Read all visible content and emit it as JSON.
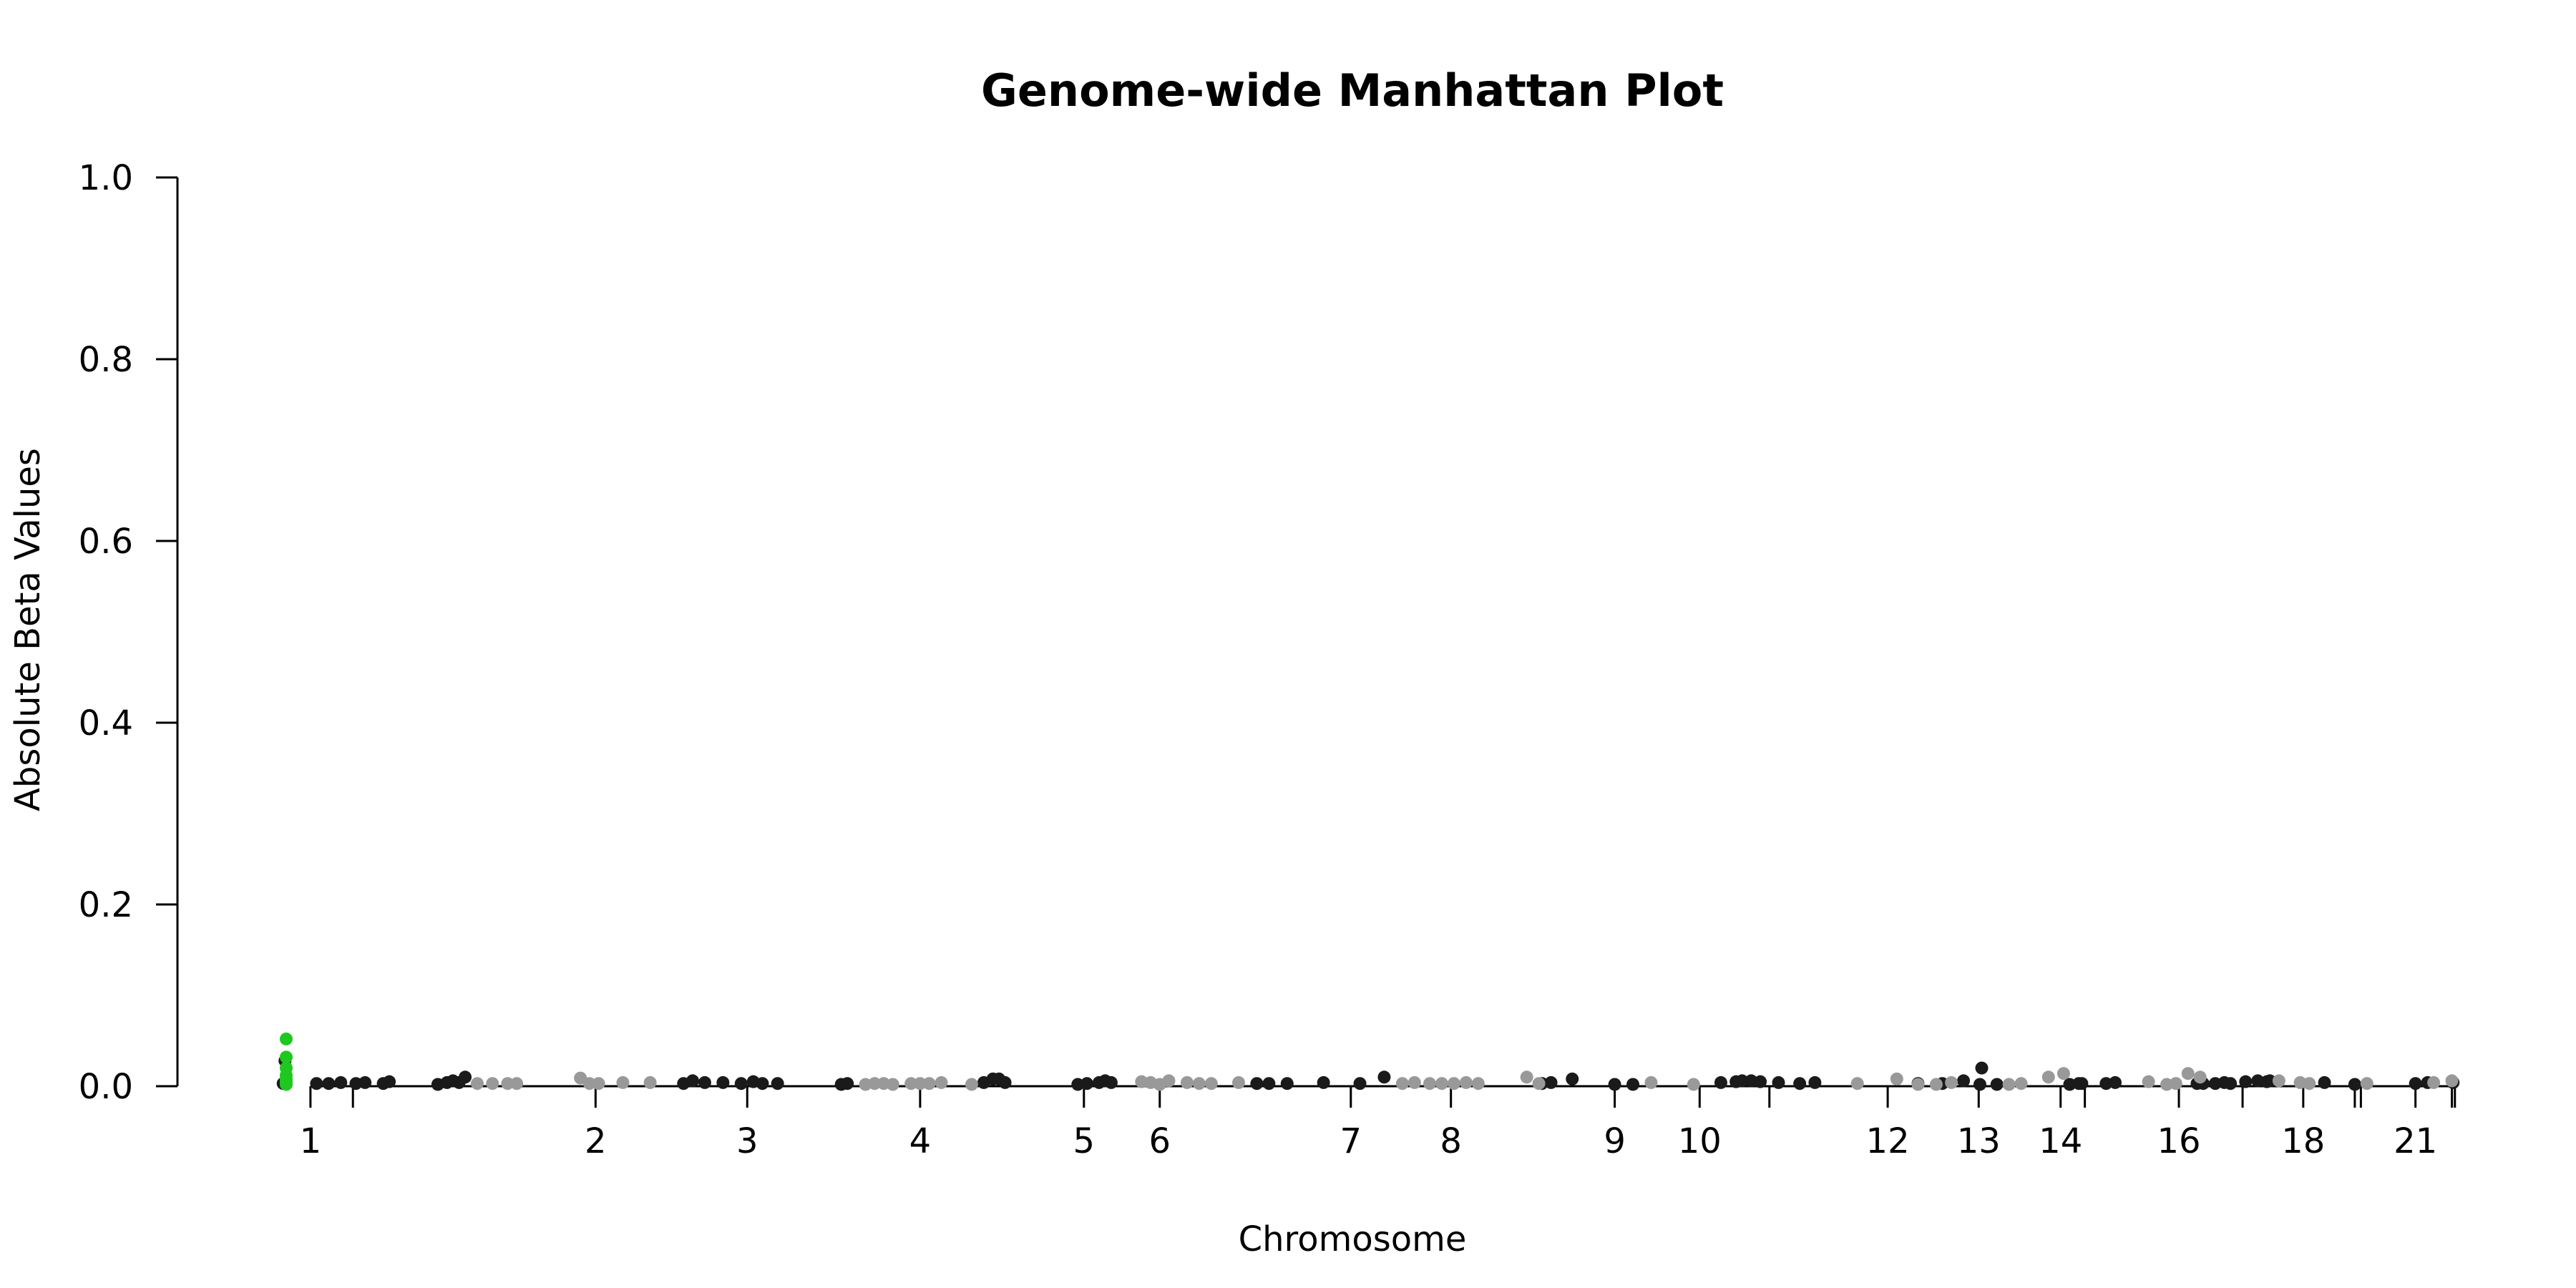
{
  "chart_data": {
    "type": "scatter",
    "title": "Genome-wide Manhattan Plot",
    "xlabel": "Chromosome",
    "ylabel": "Absolute Beta Values",
    "ylim": [
      0,
      1.0
    ],
    "y_ticks": [
      "0.0",
      "0.2",
      "0.4",
      "0.6",
      "0.8",
      "1.0"
    ],
    "x_ticks": [
      {
        "label": "1",
        "pos": 0.3
      },
      {
        "label": "",
        "pos": 1.0
      },
      {
        "label": "2",
        "pos": 5.0
      },
      {
        "label": "3",
        "pos": 7.5
      },
      {
        "label": "4",
        "pos": 10.35
      },
      {
        "label": "5",
        "pos": 13.05
      },
      {
        "label": "6",
        "pos": 14.3
      },
      {
        "label": "7",
        "pos": 17.45
      },
      {
        "label": "8",
        "pos": 19.1
      },
      {
        "label": "9",
        "pos": 21.8
      },
      {
        "label": "10",
        "pos": 23.2
      },
      {
        "label": "",
        "pos": 24.35
      },
      {
        "label": "12",
        "pos": 26.3
      },
      {
        "label": "13",
        "pos": 27.8
      },
      {
        "label": "14",
        "pos": 29.15
      },
      {
        "label": "",
        "pos": 29.55
      },
      {
        "label": "16",
        "pos": 31.1
      },
      {
        "label": "",
        "pos": 32.15
      },
      {
        "label": "18",
        "pos": 33.15
      },
      {
        "label": "",
        "pos": 34.0
      },
      {
        "label": "",
        "pos": 34.1
      },
      {
        "label": "21",
        "pos": 35.0
      },
      {
        "label": "",
        "pos": 35.6
      },
      {
        "label": "",
        "pos": 35.65
      }
    ],
    "xlim": [
      -0.3,
      35.7
    ],
    "series": [
      {
        "color": "#1a1a1a",
        "points": [
          [
            -0.15,
            0.003
          ],
          [
            -0.12,
            0.028
          ],
          [
            0.4,
            0.003
          ],
          [
            0.6,
            0.003
          ],
          [
            0.8,
            0.004
          ],
          [
            1.05,
            0.003
          ],
          [
            1.2,
            0.004
          ],
          [
            1.5,
            0.003
          ],
          [
            1.6,
            0.005
          ],
          [
            2.4,
            0.002
          ],
          [
            2.55,
            0.004
          ],
          [
            2.65,
            0.006
          ],
          [
            2.75,
            0.004
          ],
          [
            2.85,
            0.01
          ],
          [
            6.45,
            0.003
          ],
          [
            6.6,
            0.006
          ],
          [
            6.8,
            0.004
          ],
          [
            7.1,
            0.004
          ],
          [
            7.4,
            0.003
          ],
          [
            7.6,
            0.005
          ],
          [
            7.75,
            0.003
          ],
          [
            8.0,
            0.003
          ],
          [
            9.05,
            0.002
          ],
          [
            9.15,
            0.003
          ],
          [
            11.4,
            0.004
          ],
          [
            11.55,
            0.008
          ],
          [
            11.65,
            0.008
          ],
          [
            11.75,
            0.004
          ],
          [
            12.95,
            0.002
          ],
          [
            13.1,
            0.003
          ],
          [
            13.3,
            0.004
          ],
          [
            13.4,
            0.006
          ],
          [
            13.5,
            0.004
          ],
          [
            15.9,
            0.003
          ],
          [
            16.1,
            0.003
          ],
          [
            16.4,
            0.003
          ],
          [
            17.0,
            0.004
          ],
          [
            17.6,
            0.003
          ],
          [
            18.0,
            0.01
          ],
          [
            20.6,
            0.003
          ],
          [
            20.75,
            0.004
          ],
          [
            21.1,
            0.008
          ],
          [
            21.8,
            0.002
          ],
          [
            22.1,
            0.002
          ],
          [
            23.55,
            0.004
          ],
          [
            23.8,
            0.005
          ],
          [
            23.9,
            0.006
          ],
          [
            24.05,
            0.006
          ],
          [
            24.2,
            0.005
          ],
          [
            24.5,
            0.004
          ],
          [
            24.85,
            0.003
          ],
          [
            25.1,
            0.004
          ],
          [
            26.8,
            0.003
          ],
          [
            27.2,
            0.003
          ],
          [
            27.55,
            0.006
          ],
          [
            27.82,
            0.002
          ],
          [
            27.85,
            0.02
          ],
          [
            28.1,
            0.002
          ],
          [
            29.3,
            0.002
          ],
          [
            29.45,
            0.003
          ],
          [
            29.5,
            0.003
          ],
          [
            29.9,
            0.003
          ],
          [
            30.05,
            0.004
          ],
          [
            31.4,
            0.003
          ],
          [
            31.5,
            0.003
          ],
          [
            31.7,
            0.003
          ],
          [
            31.85,
            0.004
          ],
          [
            31.95,
            0.003
          ],
          [
            32.2,
            0.005
          ],
          [
            32.4,
            0.006
          ],
          [
            32.55,
            0.005
          ],
          [
            32.6,
            0.006
          ],
          [
            33.5,
            0.004
          ],
          [
            34.0,
            0.002
          ],
          [
            35.0,
            0.003
          ],
          [
            35.2,
            0.004
          ],
          [
            35.62,
            0.004
          ]
        ]
      },
      {
        "color": "#999999",
        "points": [
          [
            3.05,
            0.003
          ],
          [
            3.3,
            0.003
          ],
          [
            3.55,
            0.003
          ],
          [
            3.7,
            0.003
          ],
          [
            4.75,
            0.009
          ],
          [
            4.9,
            0.003
          ],
          [
            5.05,
            0.003
          ],
          [
            5.45,
            0.004
          ],
          [
            5.9,
            0.004
          ],
          [
            9.45,
            0.002
          ],
          [
            9.6,
            0.003
          ],
          [
            9.75,
            0.003
          ],
          [
            9.9,
            0.002
          ],
          [
            10.2,
            0.003
          ],
          [
            10.35,
            0.003
          ],
          [
            10.5,
            0.003
          ],
          [
            10.7,
            0.004
          ],
          [
            11.2,
            0.002
          ],
          [
            14.0,
            0.005
          ],
          [
            14.15,
            0.004
          ],
          [
            14.3,
            0.002
          ],
          [
            14.45,
            0.006
          ],
          [
            14.75,
            0.004
          ],
          [
            14.95,
            0.003
          ],
          [
            15.15,
            0.003
          ],
          [
            15.6,
            0.004
          ],
          [
            18.3,
            0.003
          ],
          [
            18.5,
            0.004
          ],
          [
            18.75,
            0.003
          ],
          [
            18.95,
            0.003
          ],
          [
            19.15,
            0.003
          ],
          [
            19.35,
            0.004
          ],
          [
            19.55,
            0.003
          ],
          [
            20.35,
            0.01
          ],
          [
            20.55,
            0.003
          ],
          [
            22.4,
            0.004
          ],
          [
            23.1,
            0.002
          ],
          [
            25.8,
            0.003
          ],
          [
            26.45,
            0.008
          ],
          [
            26.8,
            0.002
          ],
          [
            27.1,
            0.002
          ],
          [
            27.35,
            0.004
          ],
          [
            28.3,
            0.002
          ],
          [
            28.5,
            0.003
          ],
          [
            28.95,
            0.01
          ],
          [
            29.2,
            0.014
          ],
          [
            30.6,
            0.005
          ],
          [
            30.9,
            0.002
          ],
          [
            31.05,
            0.003
          ],
          [
            31.25,
            0.014
          ],
          [
            31.45,
            0.01
          ],
          [
            32.75,
            0.006
          ],
          [
            33.1,
            0.004
          ],
          [
            33.25,
            0.003
          ],
          [
            34.2,
            0.003
          ],
          [
            35.3,
            0.004
          ],
          [
            35.6,
            0.006
          ]
        ]
      },
      {
        "color": "#1ec81e",
        "points": [
          [
            -0.1,
            0.052
          ],
          [
            -0.1,
            0.032
          ],
          [
            -0.1,
            0.02
          ],
          [
            -0.1,
            0.012
          ],
          [
            -0.1,
            0.008
          ],
          [
            -0.1,
            0.005
          ],
          [
            -0.1,
            0.003
          ],
          [
            -0.1,
            0.002
          ]
        ]
      }
    ]
  }
}
